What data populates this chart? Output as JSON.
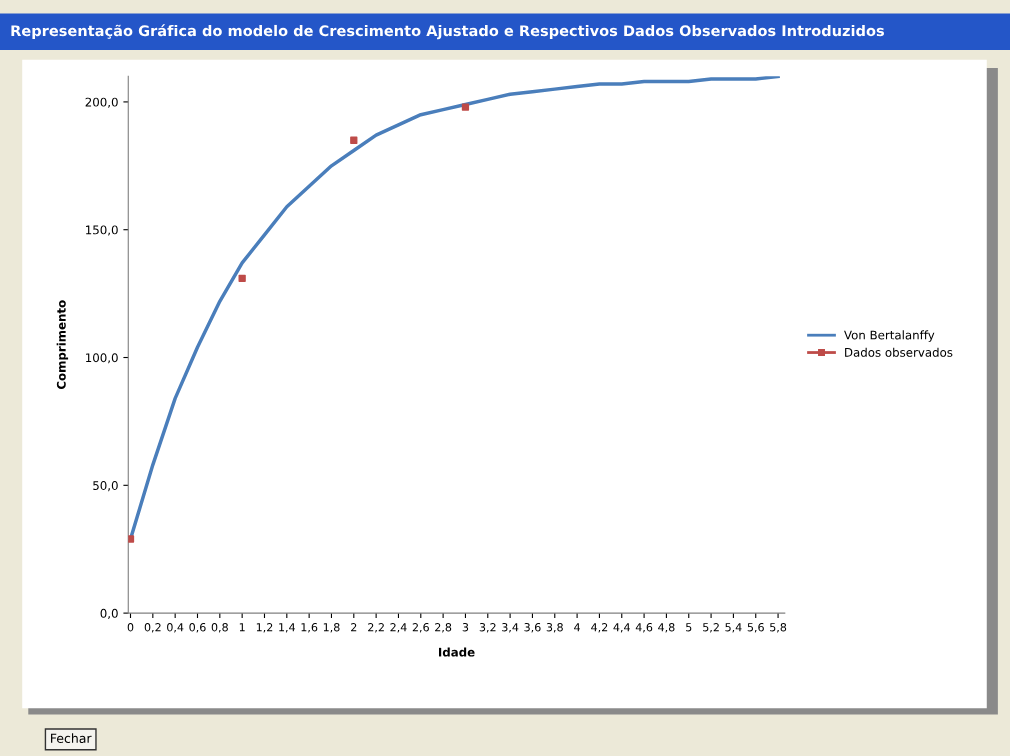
{
  "chart_data": {
    "type": "line",
    "title": "Representação Gráfica do modelo de Crescimento Ajustado e Respectivos Dados Observados Introduzidos",
    "xlabel": "Idade",
    "ylabel": "Comprimento",
    "categories": [
      "0",
      "0,2",
      "0,4",
      "0,6",
      "0,8",
      "1",
      "1,2",
      "1,4",
      "1,6",
      "1,8",
      "2",
      "2,2",
      "2,4",
      "2,6",
      "2,8",
      "3",
      "3,2",
      "3,4",
      "3,6",
      "3,8",
      "4",
      "4,2",
      "4,4",
      "4,6",
      "4,8",
      "5",
      "5,2",
      "5,4",
      "5,6",
      "5,8"
    ],
    "series": [
      {
        "name": "Von Bertalanffy",
        "color": "#4a7ebb",
        "marker": "none",
        "values": [
          29,
          58,
          84,
          104,
          122,
          137,
          148,
          159,
          167,
          175,
          181,
          187,
          191,
          195,
          197,
          199,
          201,
          203,
          204,
          205,
          206,
          207,
          207,
          208,
          208,
          208,
          209,
          209,
          209,
          210
        ]
      },
      {
        "name": "Dados observados",
        "color": "#be4b48",
        "type": "scatter",
        "marker": "square",
        "values": [
          29,
          null,
          null,
          null,
          null,
          131,
          null,
          null,
          null,
          null,
          185,
          null,
          null,
          null,
          null,
          198,
          null,
          null,
          null,
          null,
          null,
          null,
          null,
          null,
          null,
          null,
          null,
          null,
          null,
          null
        ]
      }
    ],
    "ylim": [
      0,
      210
    ],
    "yticks": [
      {
        "value": 0,
        "label": "0,0"
      },
      {
        "value": 50,
        "label": "50,0"
      },
      {
        "value": 100,
        "label": "100,0"
      },
      {
        "value": 150,
        "label": "150,0"
      },
      {
        "value": 200,
        "label": "200,0"
      }
    ],
    "grid": false,
    "legend": "right",
    "annotations": [
      "Fechar"
    ]
  }
}
